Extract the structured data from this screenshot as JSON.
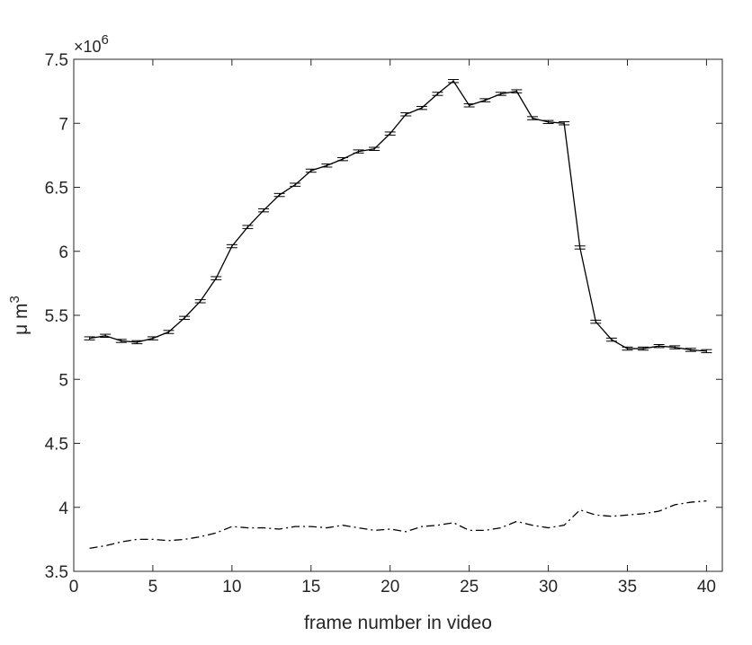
{
  "chart_data": {
    "type": "line",
    "xlabel": "frame number in video",
    "ylabel_base": "μ m",
    "ylabel_sup": "3",
    "y_multiplier": "×10",
    "y_multiplier_exp": "6",
    "xlim": [
      0,
      41
    ],
    "ylim": [
      3.5,
      7.5
    ],
    "xticks": [
      0,
      5,
      10,
      15,
      20,
      25,
      30,
      35,
      40
    ],
    "yticks": [
      3.5,
      4,
      4.5,
      5,
      5.5,
      6,
      6.5,
      7,
      7.5
    ],
    "xtick_labels": [
      "0",
      "5",
      "10",
      "15",
      "20",
      "25",
      "30",
      "35",
      "40"
    ],
    "ytick_labels": [
      "3.5",
      "4",
      "4.5",
      "5",
      "5.5",
      "6",
      "6.5",
      "7",
      "7.5"
    ],
    "grid": false,
    "x": [
      1,
      2,
      3,
      4,
      5,
      6,
      7,
      8,
      9,
      10,
      11,
      12,
      13,
      14,
      15,
      16,
      17,
      18,
      19,
      20,
      21,
      22,
      23,
      24,
      25,
      26,
      27,
      28,
      29,
      30,
      31,
      32,
      33,
      34,
      35,
      36,
      37,
      38,
      39,
      40
    ],
    "series": [
      {
        "style": "solid",
        "error_bars": true,
        "error": 0.012,
        "values": [
          5.32,
          5.34,
          5.3,
          5.29,
          5.32,
          5.37,
          5.48,
          5.61,
          5.79,
          6.04,
          6.19,
          6.32,
          6.44,
          6.52,
          6.63,
          6.67,
          6.72,
          6.78,
          6.8,
          6.92,
          7.07,
          7.12,
          7.23,
          7.33,
          7.14,
          7.18,
          7.23,
          7.25,
          7.04,
          7.01,
          7.0,
          6.03,
          5.45,
          5.31,
          5.24,
          5.24,
          5.26,
          5.25,
          5.23,
          5.22
        ]
      },
      {
        "style": "dashdot",
        "error_bars": false,
        "values": [
          3.68,
          3.7,
          3.73,
          3.75,
          3.75,
          3.74,
          3.75,
          3.77,
          3.8,
          3.85,
          3.84,
          3.84,
          3.83,
          3.85,
          3.85,
          3.84,
          3.86,
          3.84,
          3.82,
          3.83,
          3.81,
          3.85,
          3.86,
          3.88,
          3.82,
          3.82,
          3.84,
          3.89,
          3.86,
          3.84,
          3.86,
          3.98,
          3.94,
          3.93,
          3.94,
          3.95,
          3.97,
          4.02,
          4.04,
          4.05
        ]
      }
    ]
  }
}
